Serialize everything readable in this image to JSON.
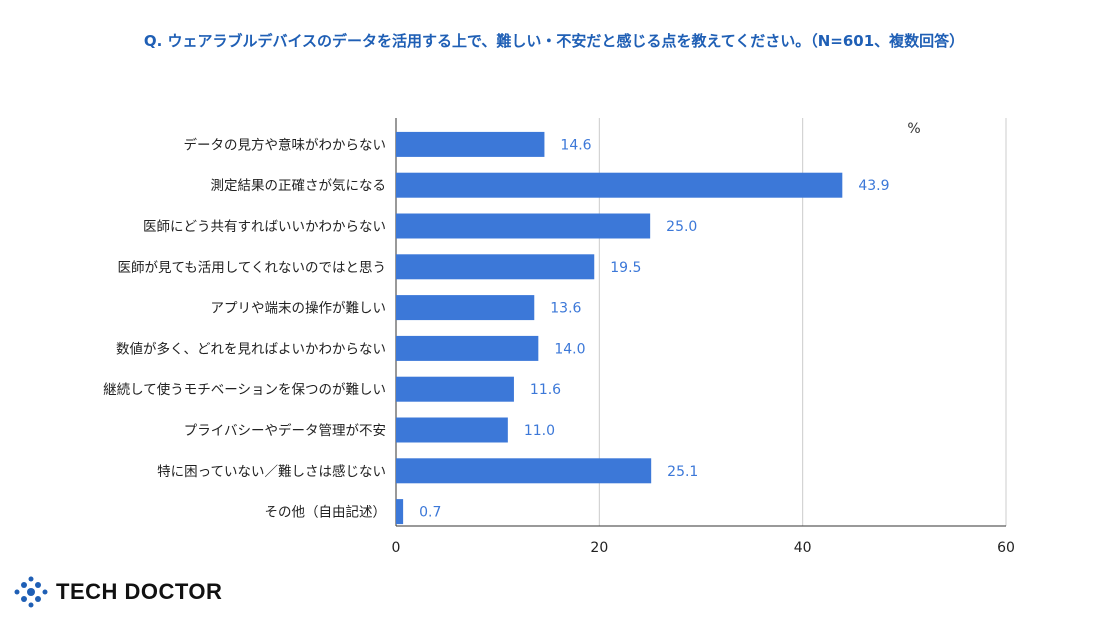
{
  "title": "Q. ウェアラブルデバイスのデータを活用する上で、難しい・不安だと感じる点を教えてください。（N=601、複数回答）",
  "logo": "TECH DOCTOR",
  "chart_data": {
    "type": "bar",
    "orientation": "horizontal",
    "title": "Q. ウェアラブルデバイスのデータを活用する上で、難しい・不安だと感じる点を教えてください。（N=601、複数回答）",
    "unit_label": "%",
    "categories": [
      "データの見方や意味がわからない",
      "測定結果の正確さが気になる",
      "医師にどう共有すればいいかわからない",
      "医師が見ても活用してくれないのではと思う",
      "アプリや端末の操作が難しい",
      "数値が多く、どれを見ればよいかわからない",
      "継続して使うモチベーションを保つのが難しい",
      "プライバシーやデータ管理が不安",
      "特に困っていない／難しさは感じない",
      "その他（自由記述）"
    ],
    "values": [
      14.6,
      43.9,
      25.0,
      19.5,
      13.6,
      14.0,
      11.6,
      11.0,
      25.1,
      0.7
    ],
    "xlim": [
      0,
      60
    ],
    "xticks": [
      0,
      20,
      40,
      60
    ],
    "grid": true,
    "bar_color": "#3c78d8",
    "label_color": "#3c78d8"
  }
}
